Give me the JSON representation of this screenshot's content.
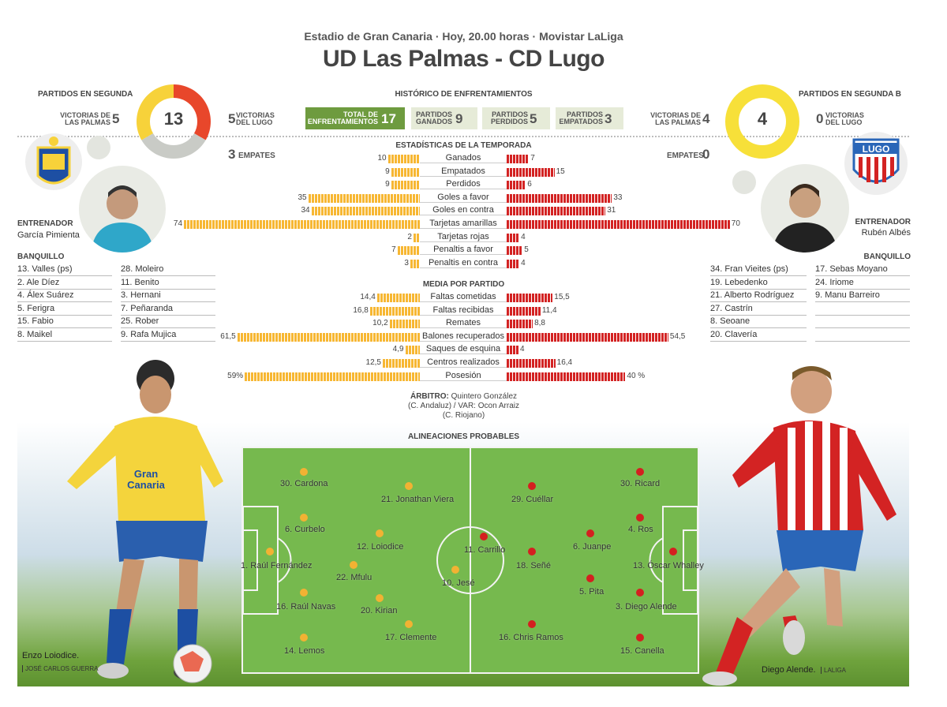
{
  "header": {
    "subtitle": "Estadio de Gran Canaria · Hoy, 20.00 horas · Movistar LaLiga",
    "title": "UD Las Palmas - CD Lugo"
  },
  "home": {
    "section_label": "PARTIDOS EN SEGUNDA",
    "wins_label": "VICTORIAS DE LAS PALMAS",
    "wins": "5",
    "donut_total": "13",
    "draws_value": "3",
    "draws_label": "EMPATES",
    "opp_wins_value": "5",
    "opp_wins_label": "VICTORIAS DEL LUGO",
    "coach_label": "ENTRENADOR",
    "coach_name": "García Pimienta",
    "bench_label": "BANQUILLO",
    "bench_col1": [
      "13. Valles (ps)",
      "2. Ale Díez",
      "4. Álex Suárez",
      "5. Ferigra",
      "15. Fabio",
      "8. Maikel"
    ],
    "bench_col2": [
      "28. Moleiro",
      "11. Benito",
      "3. Hernani",
      "7. Peñaranda",
      "25. Rober",
      "9. Rafa Mujica"
    ],
    "colors": {
      "primary": "#f7d23a",
      "secondary": "#e8472b",
      "grey": "#c9cbc6"
    }
  },
  "away": {
    "section_label": "PARTIDOS EN SEGUNDA B",
    "wins_label": "VICTORIAS DE LAS PALMAS",
    "wins": "4",
    "donut_total": "4",
    "draws_value": "0",
    "draws_label": "EMPATES",
    "opp_wins_value": "0",
    "opp_wins_label": "VICTORIAS DEL LUGO",
    "coach_label": "ENTRENADOR",
    "coach_name": "Rubén Albés",
    "bench_label": "BANQUILLO",
    "bench_col1": [
      "34. Fran Vieites (ps)",
      "19. Lebedenko",
      "21. Alberto Rodríguez",
      "27. Castrín",
      "8. Seoane",
      "20. Clavería"
    ],
    "bench_col2": [
      "17. Sebas Moyano",
      "24. Iriome",
      "9. Manu Barreiro",
      "",
      "",
      ""
    ],
    "colors": {
      "primary": "#f7e039"
    }
  },
  "history": {
    "title": "HISTÓRICO DE ENFRENTAMIENTOS",
    "total_label": "TOTAL DE ENFRENTAMIENTOS",
    "total": "17",
    "won_label": "PARTIDOS GANADOS",
    "won": "9",
    "lost_label": "PARTIDOS PERDIDOS",
    "lost": "5",
    "drawn_label": "PARTIDOS EMPATADOS",
    "drawn": "3"
  },
  "season_stats": {
    "title": "ESTADÍSTICAS DE LA TEMPORADA",
    "rows": [
      {
        "label": "Ganados",
        "home": "10",
        "away": "7"
      },
      {
        "label": "Empatados",
        "home": "9",
        "away": "15"
      },
      {
        "label": "Perdidos",
        "home": "9",
        "away": "6"
      },
      {
        "label": "Goles a favor",
        "home": "35",
        "away": "33"
      },
      {
        "label": "Goles en contra",
        "home": "34",
        "away": "31"
      },
      {
        "label": "Tarjetas amarillas",
        "home": "74",
        "away": "70"
      },
      {
        "label": "Tarjetas rojas",
        "home": "2",
        "away": "4"
      },
      {
        "label": "Penaltis a favor",
        "home": "7",
        "away": "5"
      },
      {
        "label": "Penaltis en contra",
        "home": "3",
        "away": "4"
      }
    ]
  },
  "per_match": {
    "title": "MEDIA POR PARTIDO",
    "rows": [
      {
        "label": "Faltas cometidas",
        "home": "14,4",
        "away": "15,5"
      },
      {
        "label": "Faltas recibidas",
        "home": "16,8",
        "away": "11,4"
      },
      {
        "label": "Remates",
        "home": "10,2",
        "away": "8,8"
      },
      {
        "label": "Balones recuperados",
        "home": "61,5",
        "away": "54,5"
      },
      {
        "label": "Saques de esquina",
        "home": "4,9",
        "away": "4"
      },
      {
        "label": "Centros realizados",
        "home": "12,5",
        "away": "16,4"
      },
      {
        "label": "Posesión",
        "home": "59%",
        "away": "40 %"
      }
    ]
  },
  "referee": {
    "label": "ÁRBITRO:",
    "line1": "Quintero González",
    "line2": "(C. Andaluz) / VAR: Ocon Arraiz",
    "line3": "(C. Riojano)"
  },
  "lineups": {
    "title": "ALINEACIONES PROBABLES",
    "home_players": [
      {
        "name": "30. Cardona"
      },
      {
        "name": "6. Curbelo"
      },
      {
        "name": "1. Raúl Fernández"
      },
      {
        "name": "16. Raúl Navas"
      },
      {
        "name": "14. Lemos"
      },
      {
        "name": "21. Jonathan Viera"
      },
      {
        "name": "12. Loiodice"
      },
      {
        "name": "22. Mfulu"
      },
      {
        "name": "20. Kirian"
      },
      {
        "name": "17. Clemente"
      },
      {
        "name": "10. Jesé"
      }
    ],
    "away_players": [
      {
        "name": "30. Ricard"
      },
      {
        "name": "4. Ros"
      },
      {
        "name": "13. Óscar Whalley"
      },
      {
        "name": "3. Diego Alende"
      },
      {
        "name": "15. Canella"
      },
      {
        "name": "29. Cuéllar"
      },
      {
        "name": "6. Juanpe"
      },
      {
        "name": "5. Pita"
      },
      {
        "name": "11. Carrillo"
      },
      {
        "name": "18. Señé"
      },
      {
        "name": "16. Chris Ramos"
      }
    ]
  },
  "captions": {
    "left": "Enzo Loiodice.",
    "left_credit": "JOSÉ CARLOS GUERRA",
    "right": "Diego Alende.",
    "right_credit": "LALIGA"
  },
  "logos": {
    "lugo_text": "LUGO",
    "laspalmas_text": "U.D. LAS PALMAS"
  }
}
